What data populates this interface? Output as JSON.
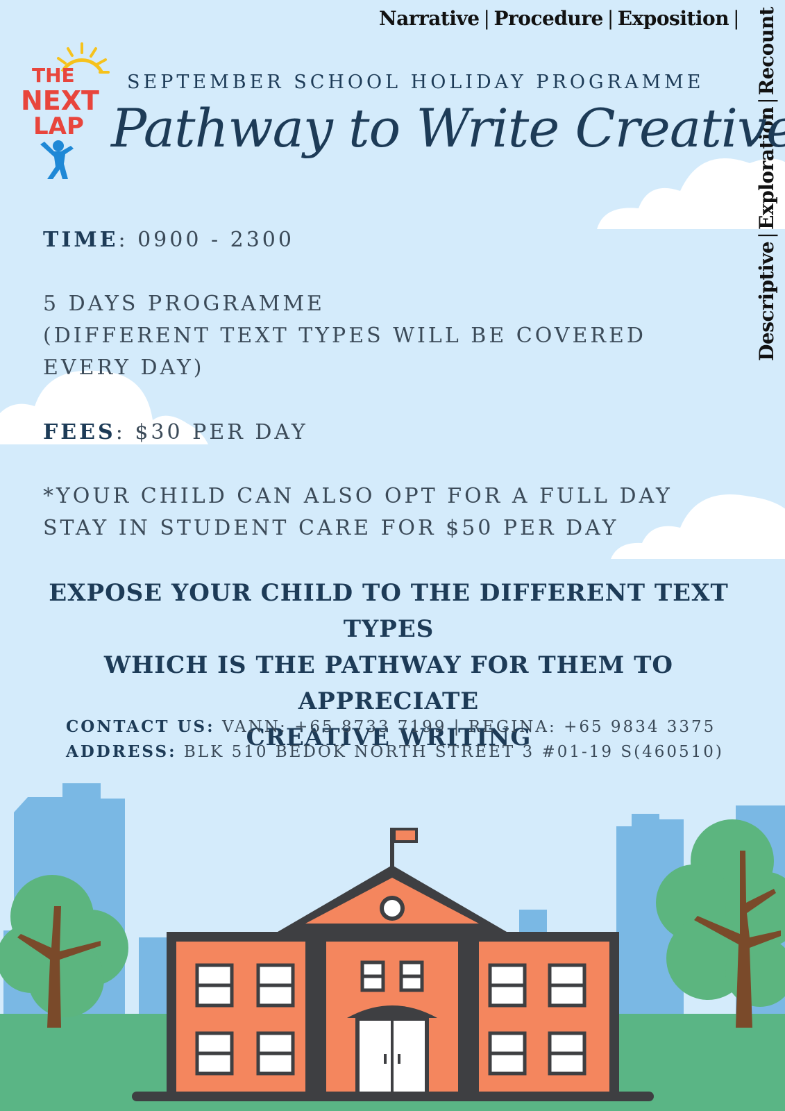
{
  "text_types": {
    "top": [
      "Narrative",
      "Procedure",
      "Exposition"
    ],
    "side": [
      "Descriptive",
      "Exploration",
      "Recount"
    ],
    "separator": "|"
  },
  "logo": {
    "line1": "THE",
    "line2": "NEXT",
    "line3": "LAP",
    "colors": {
      "red": "#e8453c",
      "sun": "#f6c21c",
      "figure": "#1e88d6"
    }
  },
  "header": {
    "subtitle": "SEPTEMBER SCHOOL HOLIDAY PROGRAMME",
    "title": "Pathway to Write Creatively"
  },
  "details": {
    "time_label": "TIME",
    "time_value": ": 0900 - 2300",
    "programme_line1": "5 DAYS PROGRAMME",
    "programme_line2": "(DIFFERENT TEXT TYPES WILL BE COVERED",
    "programme_line3": "EVERY DAY)",
    "fees_label": "FEES",
    "fees_value": ": $30 PER DAY",
    "note_line1": "*YOUR CHILD CAN ALSO OPT FOR A FULL DAY",
    "note_line2": "STAY IN STUDENT CARE FOR $50 PER DAY"
  },
  "tagline": {
    "line1": "EXPOSE YOUR CHILD TO THE DIFFERENT TEXT TYPES",
    "line2": "WHICH IS THE PATHWAY FOR THEM TO APPRECIATE",
    "line3": "CREATIVE WRITING"
  },
  "contact": {
    "contact_label": "CONTACT US:",
    "contact_value": " VANN: +65 8733 7199 | REGINA: +65 9834 3375",
    "address_label": "ADDRESS:",
    "address_value": " BLK 510 BEDOK NORTH STREET 3 #01-19 S(460510)"
  },
  "colors": {
    "background": "#d4ebfb",
    "heading": "#1d3b57",
    "body_text": "#3b4a58",
    "building": "#f4865e",
    "roof": "#3e3f42",
    "grass": "#5ab585",
    "city": "#7ab8e4",
    "tree": "#5cb57f",
    "trunk": "#7a4a2a"
  }
}
